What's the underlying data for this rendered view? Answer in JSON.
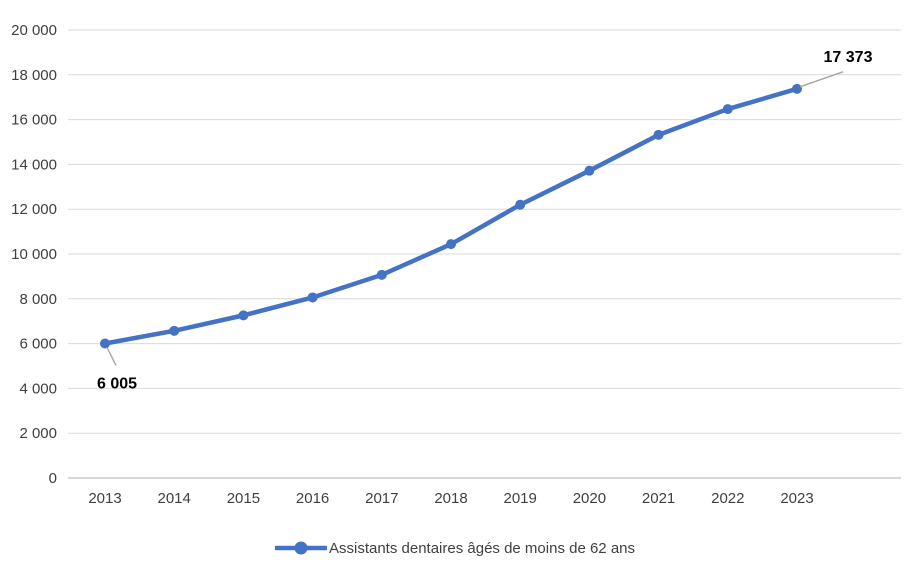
{
  "chart_data": {
    "type": "line",
    "title": "",
    "categories": [
      "2013",
      "2014",
      "2015",
      "2016",
      "2017",
      "2018",
      "2019",
      "2020",
      "2021",
      "2022",
      "2023"
    ],
    "series": [
      {
        "name": "Assistants dentaires âgés de moins de 62 ans",
        "values": [
          6005,
          6570,
          7260,
          8060,
          9070,
          10440,
          12200,
          13720,
          15320,
          16470,
          17373
        ]
      }
    ],
    "xlabel": "",
    "ylabel": "",
    "ylim": [
      0,
      20000
    ],
    "ytick_step": 2000,
    "ytick_labels": [
      "0",
      "2 000",
      "4 000",
      "6 000",
      "8 000",
      "10 000",
      "12 000",
      "14 000",
      "16 000",
      "18 000",
      "20 000"
    ],
    "grid": true,
    "legend_position": "bottom",
    "data_labels": [
      {
        "point_index": 0,
        "text": "6 005"
      },
      {
        "point_index": 10,
        "text": "17 373"
      }
    ]
  },
  "colors": {
    "line": "#4472C4",
    "marker": "#4472C4",
    "grid": "#D9D9D9",
    "axis": "#BFBFBF",
    "tick_text": "#404040",
    "data_label_text": "#000000",
    "leader_line": "#A6A6A6",
    "background": "#FFFFFF"
  }
}
